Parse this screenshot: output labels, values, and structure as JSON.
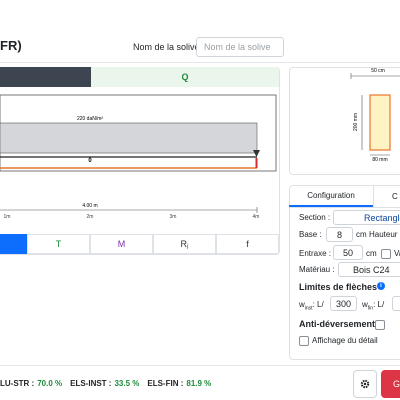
{
  "header": {
    "title": "FR)",
    "name_label": "Nom de la solive :",
    "name_placeholder": "Nom de la solive"
  },
  "diagram": {
    "tab": "Q",
    "load_label": "220 daN/m²",
    "value_label": "0",
    "span_label": "4.00 m",
    "axis_ticks": [
      "1m",
      "2m",
      "3m",
      "4m"
    ]
  },
  "result_tabs": [
    "T",
    "M",
    "Rⱼ",
    "f"
  ],
  "section_preview": {
    "width_label": "50 cm",
    "height_label": "200 mm",
    "base_label": "80 mm"
  },
  "config": {
    "tabs": [
      "Configuration",
      "C"
    ],
    "section_label": "Section :",
    "section_value": "Rectangle",
    "base_label": "Base :",
    "base_value": "8",
    "base_unit": "cm",
    "height_label": "Hauteur :",
    "entraxe_label": "Entraxe :",
    "entraxe_value": "50",
    "entraxe_unit": "cm",
    "entraxe_check": "Va",
    "material_label": "Matériau :",
    "material_value": "Bois C24",
    "deflection_title": "Limites de flèches",
    "w_inst": {
      "symbol": "w",
      "sub": "inst",
      "suffix": ": L/",
      "value": "300"
    },
    "w_fin": {
      "symbol": "w",
      "sub": "fin",
      "suffix": ": L/"
    },
    "anti_label": "Anti-déversement",
    "detail_label": "Affichage du détail"
  },
  "status": [
    {
      "label": "LU-STR :",
      "value": "70.0 %"
    },
    {
      "label": "ELS-INST :",
      "value": "33.5 %"
    },
    {
      "label": "ELS-FIN :",
      "value": "81.9 %"
    }
  ],
  "action_label": "G"
}
